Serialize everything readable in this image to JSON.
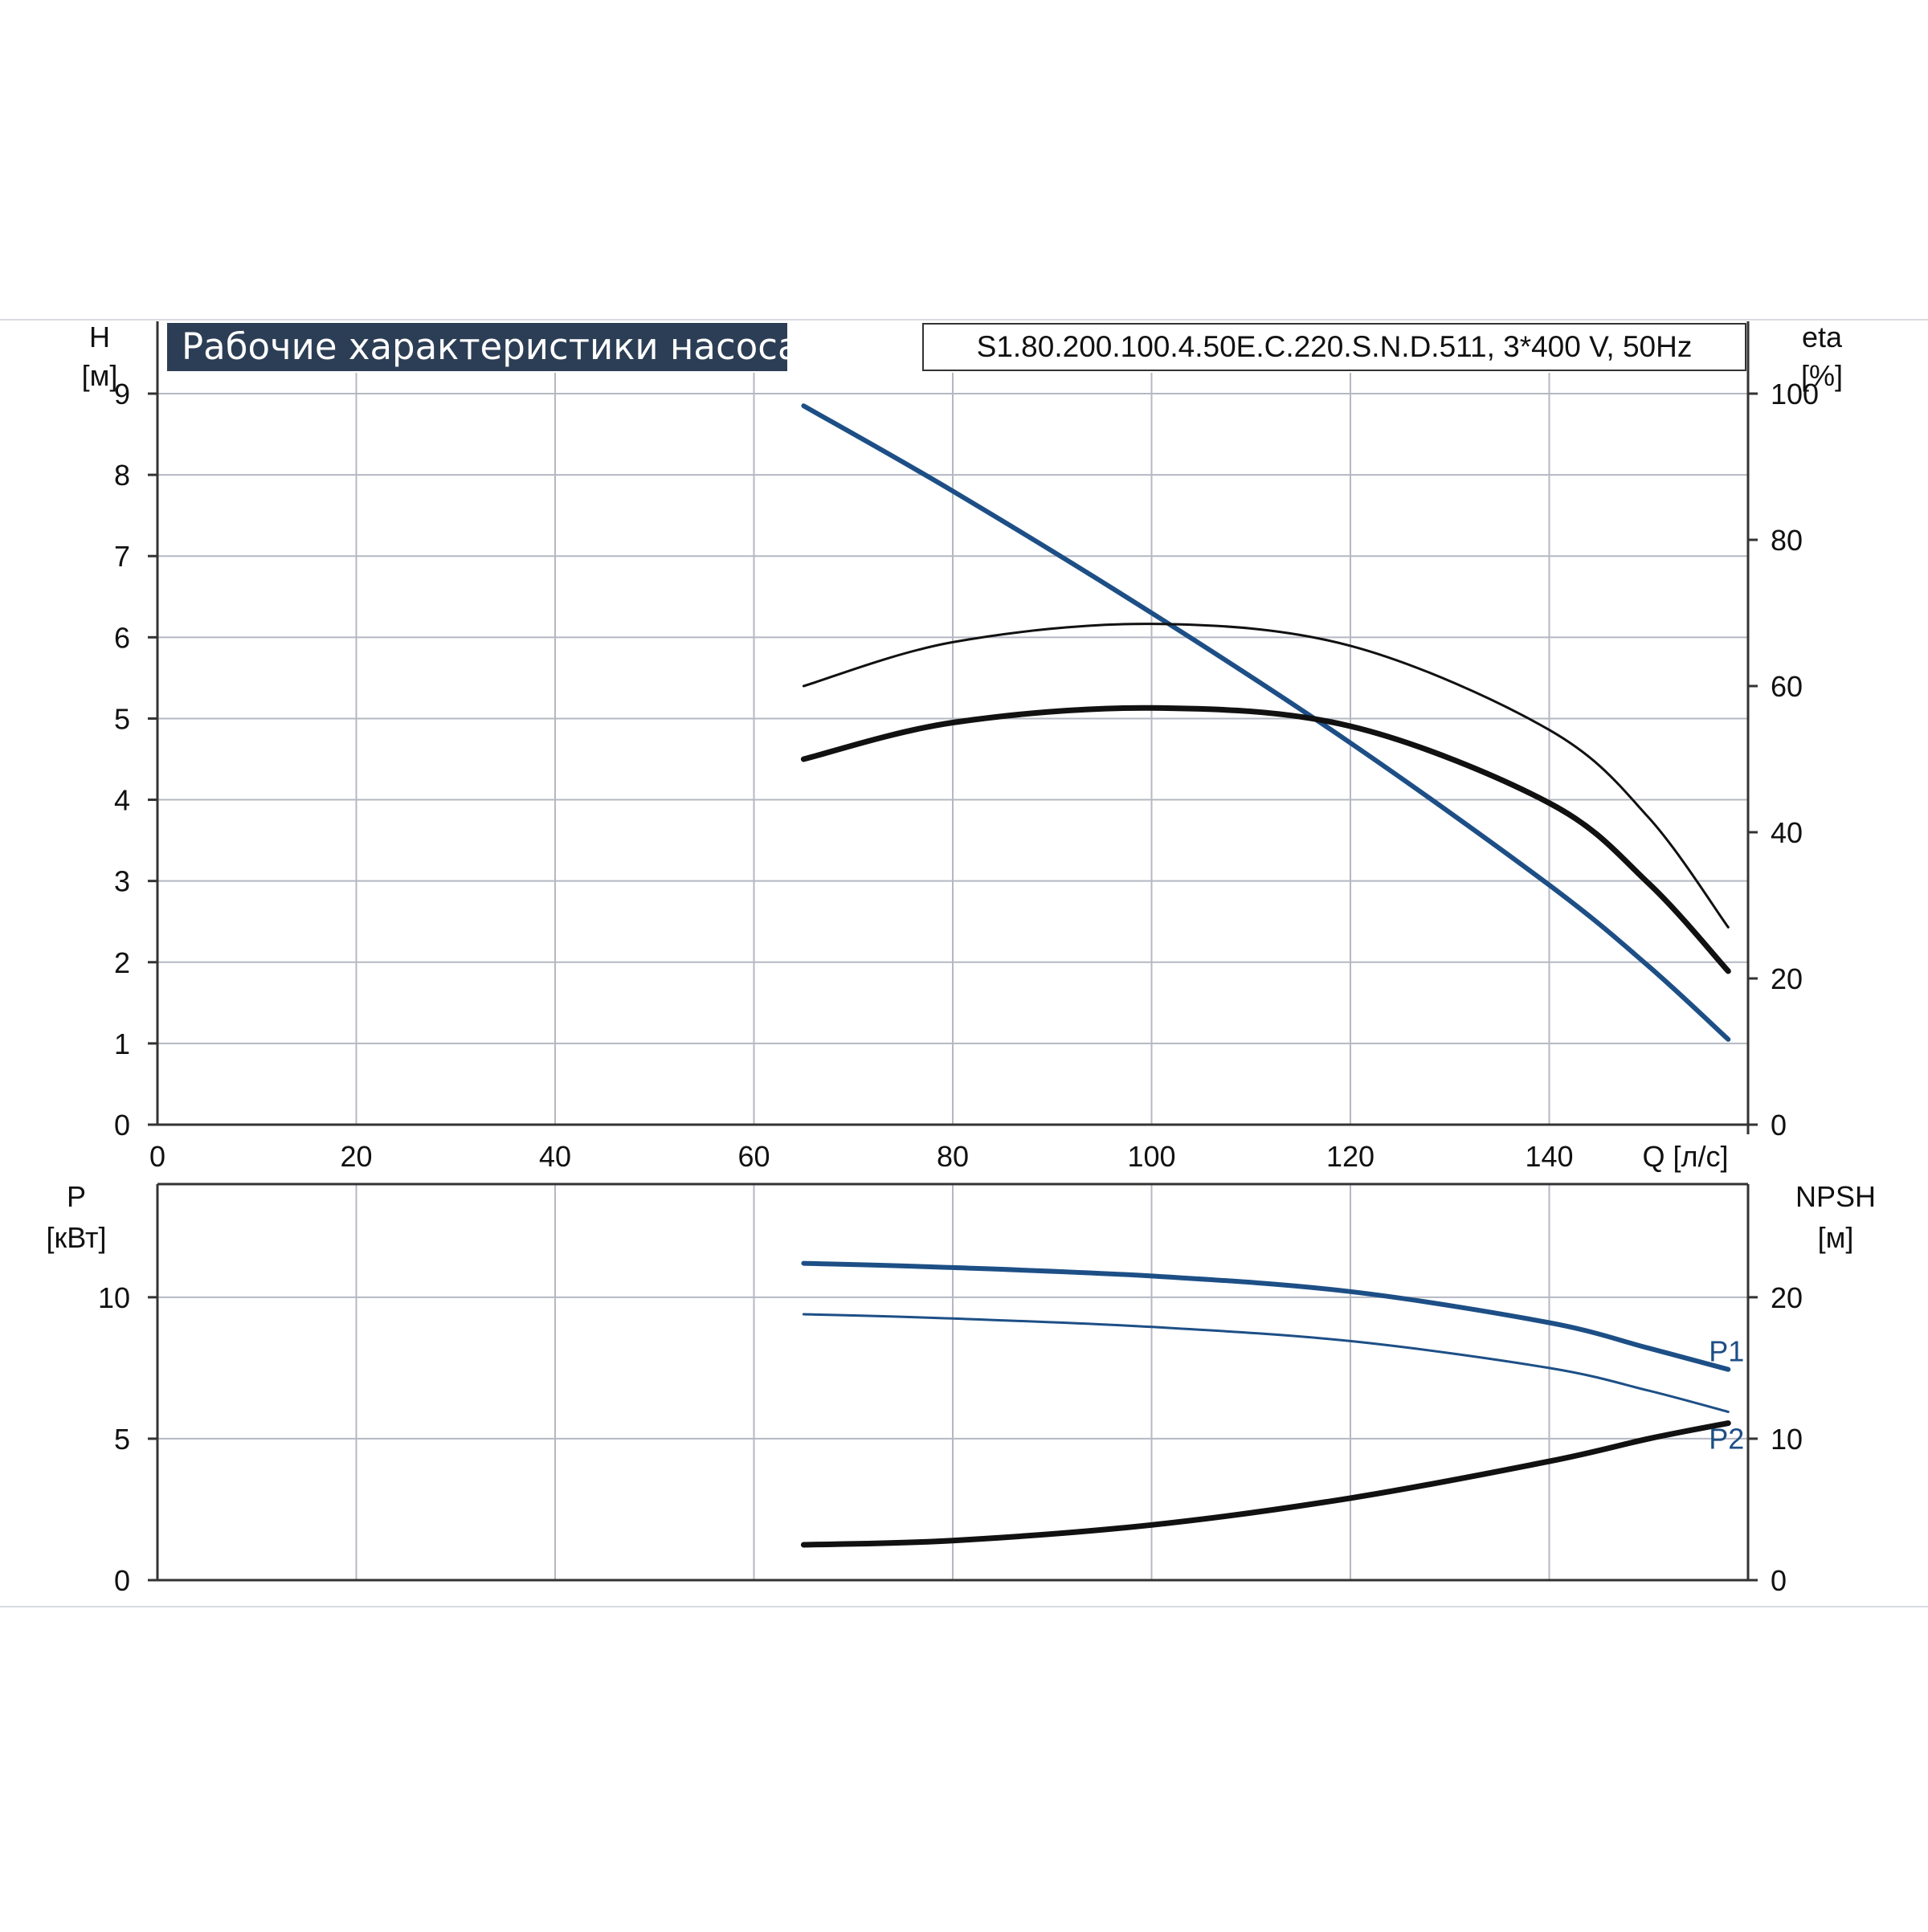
{
  "header": {
    "title": "Рабочие характеристики насоса",
    "model": "S1.80.200.100.4.50E.C.220.S.N.D.511, 3*400 V, 50Hz"
  },
  "colors": {
    "blue": "#1d4f86",
    "black": "#111111",
    "grid": "#b5b8c2",
    "title_bg": "#2c3e55"
  },
  "chart_data": [
    {
      "id": "top",
      "type": "line",
      "title": "Рабочие характеристики насоса",
      "xlabel": "Q [л/с]",
      "ylabel_left": [
        "H",
        "[м]"
      ],
      "ylabel_right": [
        "eta",
        "[%]"
      ],
      "xlim": [
        0,
        160
      ],
      "ylim_left": [
        0,
        9
      ],
      "ylim_right": [
        0,
        100
      ],
      "x_ticks": [
        0,
        20,
        40,
        60,
        80,
        100,
        120,
        140
      ],
      "y_ticks_left": [
        0,
        1,
        2,
        3,
        4,
        5,
        6,
        7,
        8,
        9
      ],
      "y_ticks_right": [
        0,
        20,
        40,
        60,
        80,
        100
      ],
      "grid": true,
      "series": [
        {
          "axis": "left",
          "color": "#1d4f86",
          "width": 6,
          "x": [
            65,
            80,
            100,
            120,
            140,
            150,
            158
          ],
          "y": [
            8.85,
            7.8,
            6.3,
            4.7,
            2.95,
            1.95,
            1.05
          ]
        },
        {
          "axis": "right",
          "color": "#111111",
          "width": 3,
          "x": [
            65,
            80,
            100,
            120,
            140,
            150,
            158
          ],
          "y": [
            60,
            66,
            68.5,
            65.5,
            54,
            42,
            27
          ]
        },
        {
          "axis": "right",
          "color": "#111111",
          "width": 7,
          "x": [
            65,
            80,
            100,
            120,
            140,
            150,
            158
          ],
          "y": [
            50,
            55,
            57,
            54.5,
            44,
            33,
            21
          ]
        }
      ]
    },
    {
      "id": "bottom",
      "type": "line",
      "ylabel_left": [
        "P",
        "[кВт]"
      ],
      "ylabel_right": [
        "NPSH",
        "[м]"
      ],
      "xlim": [
        0,
        160
      ],
      "ylim_left": [
        0,
        14
      ],
      "ylim_right": [
        0,
        28
      ],
      "y_ticks_left": [
        0,
        5,
        10
      ],
      "y_ticks_right": [
        0,
        10,
        20
      ],
      "grid": true,
      "series": [
        {
          "name": "P1",
          "axis": "left",
          "color": "#1d4f86",
          "width": 6,
          "x": [
            65,
            80,
            100,
            120,
            140,
            150,
            158
          ],
          "y": [
            11.2,
            11.05,
            10.75,
            10.2,
            9.1,
            8.2,
            7.45
          ]
        },
        {
          "name": "P2",
          "axis": "left",
          "color": "#1d4f86",
          "width": 3,
          "x": [
            65,
            80,
            100,
            120,
            140,
            150,
            158
          ],
          "y": [
            9.4,
            9.25,
            8.95,
            8.45,
            7.5,
            6.7,
            5.95
          ]
        },
        {
          "axis": "right",
          "color": "#111111",
          "width": 7,
          "x": [
            65,
            80,
            100,
            120,
            140,
            150,
            158
          ],
          "y": [
            2.5,
            2.8,
            3.9,
            5.8,
            8.4,
            10.0,
            11.1
          ]
        }
      ]
    }
  ]
}
